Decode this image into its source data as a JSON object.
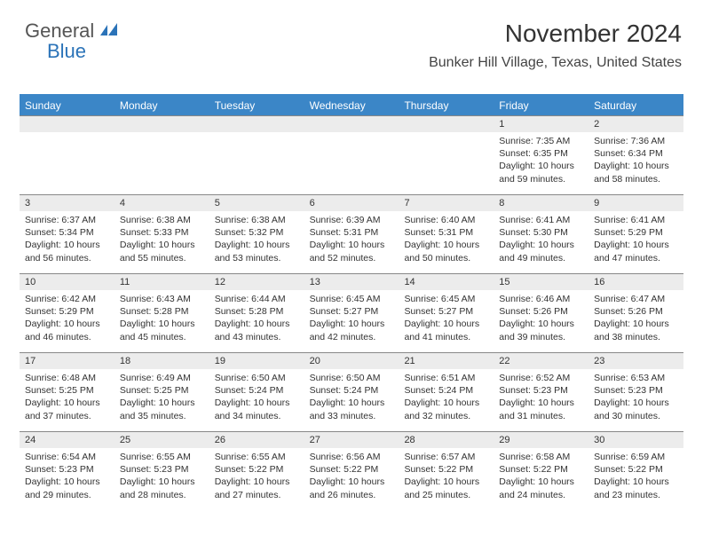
{
  "logo": {
    "part1": "General",
    "part2": "Blue"
  },
  "title": "November 2024",
  "location": "Bunker Hill Village, Texas, United States",
  "weekdays": [
    "Sunday",
    "Monday",
    "Tuesday",
    "Wednesday",
    "Thursday",
    "Friday",
    "Saturday"
  ],
  "colors": {
    "header_blue": "#3b86c7",
    "daynum_bg": "#ececec",
    "rule": "#888888",
    "logo_blue": "#2b73b8"
  },
  "weeks": [
    [
      {
        "n": "",
        "sunrise": "",
        "sunset": "",
        "daylight": ""
      },
      {
        "n": "",
        "sunrise": "",
        "sunset": "",
        "daylight": ""
      },
      {
        "n": "",
        "sunrise": "",
        "sunset": "",
        "daylight": ""
      },
      {
        "n": "",
        "sunrise": "",
        "sunset": "",
        "daylight": ""
      },
      {
        "n": "",
        "sunrise": "",
        "sunset": "",
        "daylight": ""
      },
      {
        "n": "1",
        "sunrise": "Sunrise: 7:35 AM",
        "sunset": "Sunset: 6:35 PM",
        "daylight": "Daylight: 10 hours and 59 minutes."
      },
      {
        "n": "2",
        "sunrise": "Sunrise: 7:36 AM",
        "sunset": "Sunset: 6:34 PM",
        "daylight": "Daylight: 10 hours and 58 minutes."
      }
    ],
    [
      {
        "n": "3",
        "sunrise": "Sunrise: 6:37 AM",
        "sunset": "Sunset: 5:34 PM",
        "daylight": "Daylight: 10 hours and 56 minutes."
      },
      {
        "n": "4",
        "sunrise": "Sunrise: 6:38 AM",
        "sunset": "Sunset: 5:33 PM",
        "daylight": "Daylight: 10 hours and 55 minutes."
      },
      {
        "n": "5",
        "sunrise": "Sunrise: 6:38 AM",
        "sunset": "Sunset: 5:32 PM",
        "daylight": "Daylight: 10 hours and 53 minutes."
      },
      {
        "n": "6",
        "sunrise": "Sunrise: 6:39 AM",
        "sunset": "Sunset: 5:31 PM",
        "daylight": "Daylight: 10 hours and 52 minutes."
      },
      {
        "n": "7",
        "sunrise": "Sunrise: 6:40 AM",
        "sunset": "Sunset: 5:31 PM",
        "daylight": "Daylight: 10 hours and 50 minutes."
      },
      {
        "n": "8",
        "sunrise": "Sunrise: 6:41 AM",
        "sunset": "Sunset: 5:30 PM",
        "daylight": "Daylight: 10 hours and 49 minutes."
      },
      {
        "n": "9",
        "sunrise": "Sunrise: 6:41 AM",
        "sunset": "Sunset: 5:29 PM",
        "daylight": "Daylight: 10 hours and 47 minutes."
      }
    ],
    [
      {
        "n": "10",
        "sunrise": "Sunrise: 6:42 AM",
        "sunset": "Sunset: 5:29 PM",
        "daylight": "Daylight: 10 hours and 46 minutes."
      },
      {
        "n": "11",
        "sunrise": "Sunrise: 6:43 AM",
        "sunset": "Sunset: 5:28 PM",
        "daylight": "Daylight: 10 hours and 45 minutes."
      },
      {
        "n": "12",
        "sunrise": "Sunrise: 6:44 AM",
        "sunset": "Sunset: 5:28 PM",
        "daylight": "Daylight: 10 hours and 43 minutes."
      },
      {
        "n": "13",
        "sunrise": "Sunrise: 6:45 AM",
        "sunset": "Sunset: 5:27 PM",
        "daylight": "Daylight: 10 hours and 42 minutes."
      },
      {
        "n": "14",
        "sunrise": "Sunrise: 6:45 AM",
        "sunset": "Sunset: 5:27 PM",
        "daylight": "Daylight: 10 hours and 41 minutes."
      },
      {
        "n": "15",
        "sunrise": "Sunrise: 6:46 AM",
        "sunset": "Sunset: 5:26 PM",
        "daylight": "Daylight: 10 hours and 39 minutes."
      },
      {
        "n": "16",
        "sunrise": "Sunrise: 6:47 AM",
        "sunset": "Sunset: 5:26 PM",
        "daylight": "Daylight: 10 hours and 38 minutes."
      }
    ],
    [
      {
        "n": "17",
        "sunrise": "Sunrise: 6:48 AM",
        "sunset": "Sunset: 5:25 PM",
        "daylight": "Daylight: 10 hours and 37 minutes."
      },
      {
        "n": "18",
        "sunrise": "Sunrise: 6:49 AM",
        "sunset": "Sunset: 5:25 PM",
        "daylight": "Daylight: 10 hours and 35 minutes."
      },
      {
        "n": "19",
        "sunrise": "Sunrise: 6:50 AM",
        "sunset": "Sunset: 5:24 PM",
        "daylight": "Daylight: 10 hours and 34 minutes."
      },
      {
        "n": "20",
        "sunrise": "Sunrise: 6:50 AM",
        "sunset": "Sunset: 5:24 PM",
        "daylight": "Daylight: 10 hours and 33 minutes."
      },
      {
        "n": "21",
        "sunrise": "Sunrise: 6:51 AM",
        "sunset": "Sunset: 5:24 PM",
        "daylight": "Daylight: 10 hours and 32 minutes."
      },
      {
        "n": "22",
        "sunrise": "Sunrise: 6:52 AM",
        "sunset": "Sunset: 5:23 PM",
        "daylight": "Daylight: 10 hours and 31 minutes."
      },
      {
        "n": "23",
        "sunrise": "Sunrise: 6:53 AM",
        "sunset": "Sunset: 5:23 PM",
        "daylight": "Daylight: 10 hours and 30 minutes."
      }
    ],
    [
      {
        "n": "24",
        "sunrise": "Sunrise: 6:54 AM",
        "sunset": "Sunset: 5:23 PM",
        "daylight": "Daylight: 10 hours and 29 minutes."
      },
      {
        "n": "25",
        "sunrise": "Sunrise: 6:55 AM",
        "sunset": "Sunset: 5:23 PM",
        "daylight": "Daylight: 10 hours and 28 minutes."
      },
      {
        "n": "26",
        "sunrise": "Sunrise: 6:55 AM",
        "sunset": "Sunset: 5:22 PM",
        "daylight": "Daylight: 10 hours and 27 minutes."
      },
      {
        "n": "27",
        "sunrise": "Sunrise: 6:56 AM",
        "sunset": "Sunset: 5:22 PM",
        "daylight": "Daylight: 10 hours and 26 minutes."
      },
      {
        "n": "28",
        "sunrise": "Sunrise: 6:57 AM",
        "sunset": "Sunset: 5:22 PM",
        "daylight": "Daylight: 10 hours and 25 minutes."
      },
      {
        "n": "29",
        "sunrise": "Sunrise: 6:58 AM",
        "sunset": "Sunset: 5:22 PM",
        "daylight": "Daylight: 10 hours and 24 minutes."
      },
      {
        "n": "30",
        "sunrise": "Sunrise: 6:59 AM",
        "sunset": "Sunset: 5:22 PM",
        "daylight": "Daylight: 10 hours and 23 minutes."
      }
    ]
  ]
}
